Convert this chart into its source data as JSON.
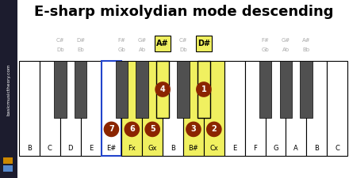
{
  "title": "E-sharp mixolydian mode descending",
  "title_fontsize": 13,
  "bg_color": "#ffffff",
  "sidebar_color": "#1c1c2e",
  "sidebar_text": "basicmusictheory.com",
  "sidebar_orange": "#cc8800",
  "sidebar_blue": "#5588cc",
  "white_key_color": "#ffffff",
  "white_key_highlight_yellow": "#f0f060",
  "white_key_highlight_blue_fill": "#ffffff",
  "white_key_highlight_blue_edge": "#2244cc",
  "black_key_color": "#505050",
  "black_key_highlight_yellow": "#f0f060",
  "note_circle_fill": "#8b2500",
  "note_circle_text": "#ffffff",
  "label_gray": "#aaaaaa",
  "label_black": "#000000",
  "highlight_box_fill": "#f0f060",
  "highlight_box_edge": "#000000",
  "wk_labels": [
    "B",
    "C",
    "D",
    "E",
    "E#",
    "Fx",
    "Gx",
    "B",
    "B#",
    "Cx",
    "E",
    "F",
    "G",
    "A",
    "B",
    "C"
  ],
  "bk_gaps": [
    1,
    2,
    4,
    5,
    6,
    7,
    8,
    11,
    12,
    13
  ],
  "bk_l1": [
    "C#",
    "D#",
    "F#",
    "G#",
    "A#",
    "C#",
    "D#",
    "F#",
    "G#",
    "A#"
  ],
  "bk_l2": [
    "Db",
    "Eb",
    "Gb",
    "Ab",
    "",
    "Db",
    "",
    "Gb",
    "Ab",
    "Bb"
  ],
  "white_highlight_yellow": [
    5,
    6,
    8,
    9
  ],
  "white_highlight_blue": [
    4
  ],
  "bk_highlighted_yellow": [
    4,
    6
  ],
  "bk_highlighted_labels": [
    "A#",
    "D#"
  ],
  "notes_black": [
    {
      "bi": 4,
      "num": "4"
    },
    {
      "bi": 6,
      "num": "1"
    }
  ],
  "notes_white": [
    {
      "wi": 4,
      "num": "7"
    },
    {
      "wi": 5,
      "num": "6"
    },
    {
      "wi": 6,
      "num": "5"
    },
    {
      "wi": 8,
      "num": "3"
    },
    {
      "wi": 9,
      "num": "2"
    }
  ]
}
